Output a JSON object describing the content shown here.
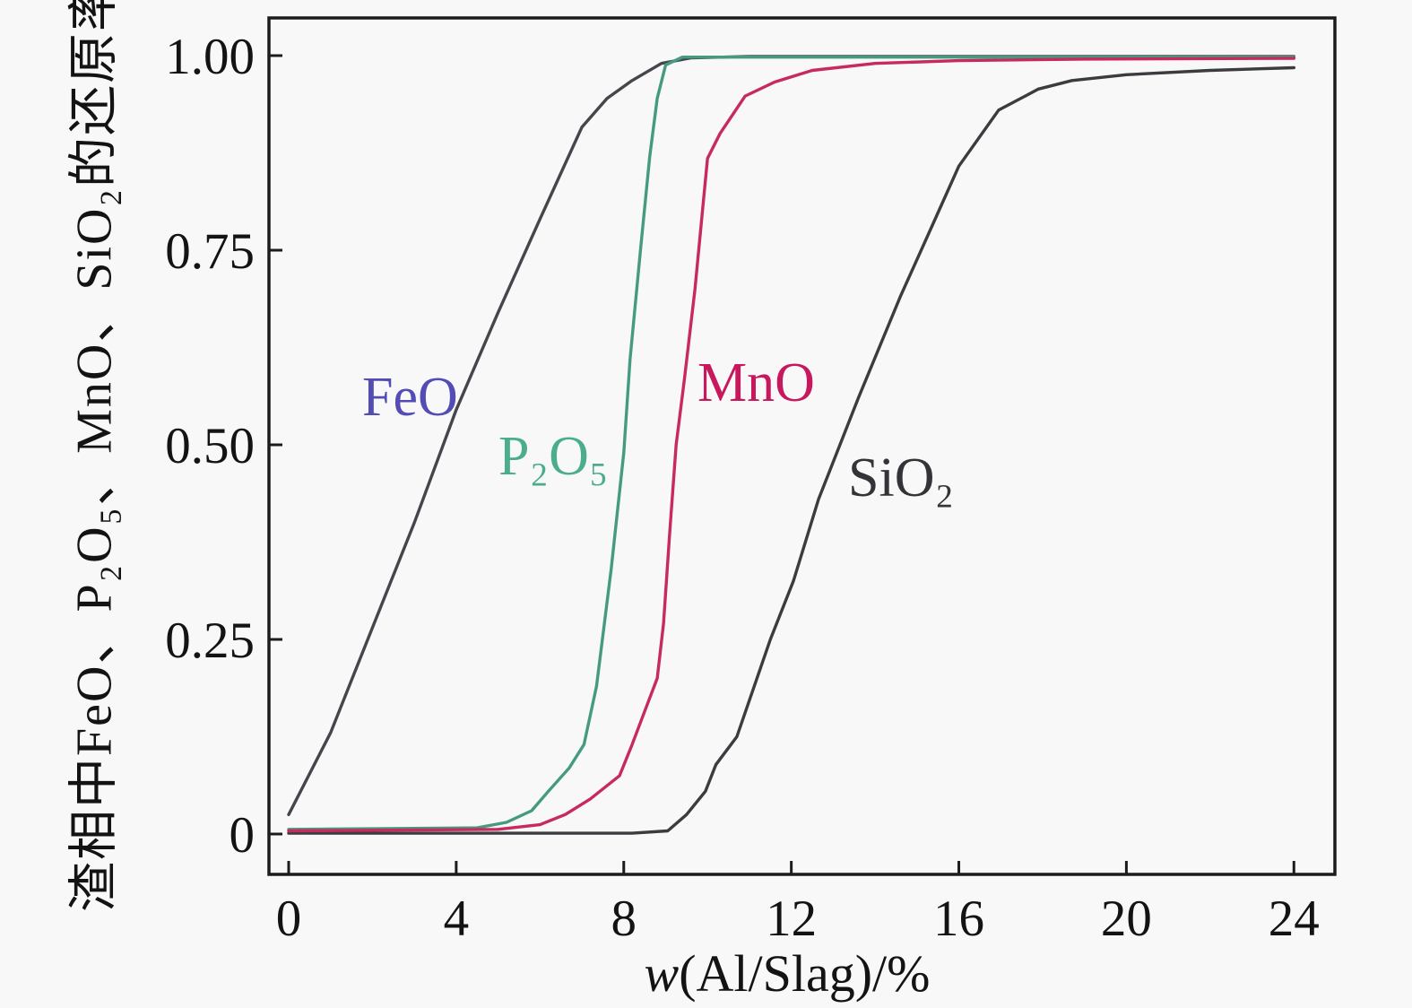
{
  "figure": {
    "background": "#f8f8f8",
    "frame_color": "#1c1c1c",
    "tick_color": "#1c1c1c",
    "text_color": "#131313"
  },
  "chart_data": {
    "type": "line",
    "title": "",
    "xlabel_italic_part": "w",
    "xlabel_rest_part": "(Al/Slag)/%",
    "ylabel": "渣相中FeO、P₂O₅、MnO、SiO₂的还原率",
    "xlim": [
      -0.5,
      25
    ],
    "ylim": [
      -0.05,
      1.05
    ],
    "grid": false,
    "legend_position": "inline-labels",
    "x_ticks": [
      "0",
      "4",
      "8",
      "12",
      "16",
      "20",
      "24"
    ],
    "x_tick_values": [
      0,
      4,
      8,
      12,
      16,
      20,
      24
    ],
    "y_tick_labels": [
      "0",
      "0.25",
      "0.50",
      "0.75",
      "1.00"
    ],
    "y_tick_values": [
      0,
      0.25,
      0.5,
      0.75,
      1.0
    ],
    "series": [
      {
        "name": "SiO2",
        "label_text": "SiO₂",
        "color": "#3b3b40",
        "label_color": "#333338",
        "points": [
          [
            0,
            0.001
          ],
          [
            8.2,
            0.001
          ],
          [
            9.05,
            0.004
          ],
          [
            9.5,
            0.025
          ],
          [
            9.95,
            0.055
          ],
          [
            10.2,
            0.089
          ],
          [
            10.7,
            0.125
          ],
          [
            11.5,
            0.25
          ],
          [
            12.05,
            0.325
          ],
          [
            12.65,
            0.43
          ],
          [
            13.6,
            0.56
          ],
          [
            14.6,
            0.69
          ],
          [
            15.35,
            0.78
          ],
          [
            16.0,
            0.858
          ],
          [
            16.95,
            0.93
          ],
          [
            17.9,
            0.957
          ],
          [
            18.7,
            0.968
          ],
          [
            20,
            0.9755
          ],
          [
            22,
            0.981
          ],
          [
            24,
            0.9845
          ]
        ]
      },
      {
        "name": "FeO",
        "label_text": "FeO",
        "color": "#45454c",
        "label_color": "#524cb4",
        "points": [
          [
            0,
            0.025
          ],
          [
            1,
            0.13
          ],
          [
            2,
            0.265
          ],
          [
            3,
            0.4
          ],
          [
            4,
            0.545
          ],
          [
            5,
            0.67
          ],
          [
            6,
            0.79
          ],
          [
            7,
            0.908
          ],
          [
            7.6,
            0.945
          ],
          [
            8.2,
            0.968
          ],
          [
            8.9,
            0.99
          ],
          [
            9.6,
            0.997
          ],
          [
            11,
            0.999
          ],
          [
            24,
            0.999
          ]
        ]
      },
      {
        "name": "P2O5",
        "label_text": "P₂O₅",
        "color": "#469a81",
        "label_color": "#4aae8d",
        "points": [
          [
            0,
            0.006
          ],
          [
            4.5,
            0.008
          ],
          [
            5.2,
            0.015
          ],
          [
            5.8,
            0.03
          ],
          [
            6.2,
            0.055
          ],
          [
            6.7,
            0.085
          ],
          [
            7.05,
            0.115
          ],
          [
            7.35,
            0.19
          ],
          [
            7.7,
            0.34
          ],
          [
            8.0,
            0.49
          ],
          [
            8.15,
            0.61
          ],
          [
            8.4,
            0.75
          ],
          [
            8.62,
            0.87
          ],
          [
            8.8,
            0.945
          ],
          [
            9.0,
            0.988
          ],
          [
            9.4,
            0.998
          ],
          [
            24,
            0.998
          ]
        ]
      },
      {
        "name": "MnO",
        "label_text": "MnO",
        "color": "#c72a5e",
        "label_color": "#c7175d",
        "points": [
          [
            0,
            0.004
          ],
          [
            5,
            0.006
          ],
          [
            6,
            0.012
          ],
          [
            6.6,
            0.025
          ],
          [
            7.2,
            0.045
          ],
          [
            7.9,
            0.075
          ],
          [
            8.2,
            0.115
          ],
          [
            8.55,
            0.165
          ],
          [
            8.8,
            0.2
          ],
          [
            8.95,
            0.27
          ],
          [
            9.1,
            0.39
          ],
          [
            9.25,
            0.5
          ],
          [
            9.45,
            0.585
          ],
          [
            9.7,
            0.7
          ],
          [
            9.87,
            0.795
          ],
          [
            10.0,
            0.868
          ],
          [
            10.3,
            0.9
          ],
          [
            10.9,
            0.948
          ],
          [
            11.6,
            0.966
          ],
          [
            12.5,
            0.981
          ],
          [
            14,
            0.99
          ],
          [
            16,
            0.9935
          ],
          [
            19,
            0.9955
          ],
          [
            24,
            0.9965
          ]
        ]
      }
    ]
  }
}
